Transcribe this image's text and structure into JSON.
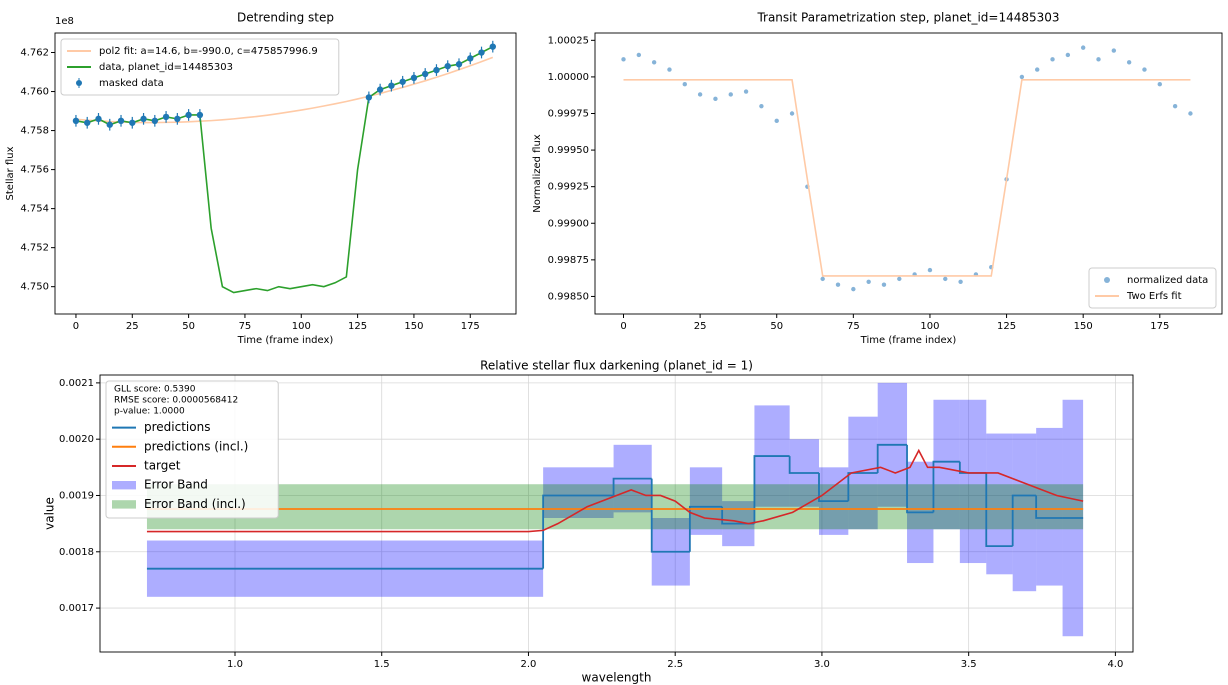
{
  "chart_data": [
    {
      "type": "line",
      "title": "Detrending step",
      "x_label": "Time (frame index)",
      "y_label": "Stellar flux",
      "offset_label": "1e8",
      "x": [
        0,
        5,
        10,
        15,
        20,
        25,
        30,
        35,
        40,
        45,
        50,
        55,
        60,
        65,
        70,
        75,
        80,
        85,
        90,
        95,
        100,
        105,
        110,
        115,
        120,
        125,
        130,
        135,
        140,
        145,
        150,
        155,
        160,
        165,
        170,
        175,
        180,
        185
      ],
      "xlim": [
        -9.3,
        195.3
      ],
      "xticks": [
        0,
        25,
        50,
        75,
        100,
        125,
        150,
        175
      ],
      "ylim": [
        4.7486,
        4.763
      ],
      "yticks": [
        {
          "value": 4.75,
          "label": "4.750"
        },
        4.752,
        4.754,
        4.756,
        4.758,
        {
          "value": 4.76,
          "label": "4.760"
        },
        4.762
      ],
      "grid": false,
      "legend": "upper left",
      "series": [
        {
          "name": "pol2 fit: a=14.6, b=-990.0, c=475857996.9",
          "color": "#ffcaa6",
          "kind": "line",
          "values": [
            4.75858,
            4.75853,
            4.7585,
            4.75846,
            4.75844,
            4.75842,
            4.75841,
            4.75841,
            4.75842,
            4.75843,
            4.75845,
            4.75848,
            4.75851,
            4.75855,
            4.7586,
            4.75866,
            4.75872,
            4.75879,
            4.75887,
            4.75896,
            4.75905,
            4.75915,
            4.75926,
            4.75937,
            4.75949,
            4.75962,
            4.75976,
            4.7599,
            4.76006,
            4.76021,
            4.76038,
            4.76055,
            4.76073,
            4.76092,
            4.76112,
            4.76132,
            4.76153,
            4.76175
          ]
        },
        {
          "name": "data, planet_id=14485303",
          "color": "#2ca02c",
          "kind": "line",
          "values": [
            4.7585,
            4.7584,
            4.7586,
            4.7583,
            4.7585,
            4.7584,
            4.7586,
            4.7585,
            4.7587,
            4.7586,
            4.7588,
            4.7588,
            4.753,
            4.75,
            4.7497,
            4.7498,
            4.7499,
            4.7498,
            4.75,
            4.7499,
            4.75,
            4.7501,
            4.75,
            4.7502,
            4.7505,
            4.756,
            4.7597,
            4.7601,
            4.7603,
            4.7605,
            4.7607,
            4.7609,
            4.7611,
            4.7613,
            4.7614,
            4.7617,
            4.762,
            4.7623
          ]
        },
        {
          "name": "masked data",
          "color": "#1f77b4",
          "kind": "errorbar",
          "error": 0.0003,
          "values": [
            4.7585,
            4.7584,
            4.7586,
            4.7583,
            4.7585,
            4.7584,
            4.7586,
            4.7585,
            4.7587,
            4.7586,
            4.7588,
            4.7588,
            null,
            null,
            null,
            null,
            null,
            null,
            null,
            null,
            null,
            null,
            null,
            null,
            null,
            null,
            4.7597,
            4.7601,
            4.7603,
            4.7605,
            4.7607,
            4.7609,
            4.7611,
            4.7613,
            4.7614,
            4.7617,
            4.762,
            4.7623
          ]
        }
      ]
    },
    {
      "type": "scatter",
      "title": "Transit Parametrization step, planet_id=14485303",
      "x_label": "Time (frame index)",
      "y_label": "Normalized flux",
      "x": [
        0,
        5,
        10,
        15,
        20,
        25,
        30,
        35,
        40,
        45,
        50,
        55,
        60,
        65,
        70,
        75,
        80,
        85,
        90,
        95,
        100,
        105,
        110,
        115,
        120,
        125,
        130,
        135,
        140,
        145,
        150,
        155,
        160,
        165,
        170,
        175,
        180,
        185
      ],
      "xlim": [
        -9.3,
        195.3
      ],
      "xticks": [
        0,
        25,
        50,
        75,
        100,
        125,
        150,
        175
      ],
      "ylim": [
        0.99838,
        1.0003
      ],
      "yticks": [
        {
          "value": 0.9985,
          "label": "0.99850"
        },
        0.99875,
        {
          "value": 0.999,
          "label": "0.99900"
        },
        0.99925,
        {
          "value": 0.9995,
          "label": "0.99950"
        },
        0.99975,
        {
          "value": 1,
          "label": "1.00000"
        },
        1.00025
      ],
      "grid": false,
      "legend": "lower right",
      "series": [
        {
          "name": "normalized data",
          "color": "#86b3d8",
          "kind": "points",
          "values": [
            1.00012,
            1.00015,
            1.0001,
            1.00005,
            0.99995,
            0.99988,
            0.99985,
            0.99988,
            0.9999,
            0.9998,
            0.9997,
            0.99975,
            0.99925,
            0.99862,
            0.99858,
            0.99855,
            0.9986,
            0.99858,
            0.99862,
            0.99865,
            0.99868,
            0.99862,
            0.9986,
            0.99865,
            0.9987,
            0.9993,
            1.0,
            1.00005,
            1.00012,
            1.00015,
            1.0002,
            1.00012,
            1.00018,
            1.0001,
            1.00005,
            0.99995,
            0.9998,
            0.99975
          ]
        },
        {
          "name": "Two Erfs fit",
          "color": "#ffcaa6",
          "kind": "line",
          "values": [
            0.99998,
            0.99998,
            0.99998,
            0.99998,
            0.99998,
            0.99998,
            0.99998,
            0.99998,
            0.99998,
            0.99998,
            0.99998,
            0.99998,
            0.9993,
            0.99864,
            0.99864,
            0.99864,
            0.99864,
            0.99864,
            0.99864,
            0.99864,
            0.99864,
            0.99864,
            0.99864,
            0.99864,
            0.99864,
            0.9993,
            0.99998,
            0.99998,
            0.99998,
            0.99998,
            0.99998,
            0.99998,
            0.99998,
            0.99998,
            0.99998,
            0.99998,
            0.99998,
            0.99998
          ]
        }
      ]
    },
    {
      "type": "line",
      "title": "Relative stellar flux darkening (planet_id = 1)",
      "x_label": "wavelength",
      "y_label": "value",
      "annotation": [
        "GLL score: 0.5390",
        "RMSE score: 0.0000568412",
        "p-value: 1.0000"
      ],
      "xlim": [
        0.54,
        4.06
      ],
      "xticks": [
        {
          "value": 1,
          "label": "1.0"
        },
        1.5,
        {
          "value": 2,
          "label": "2.0"
        },
        2.5,
        {
          "value": 3,
          "label": "3.0"
        },
        3.5,
        {
          "value": 4,
          "label": "4.0"
        }
      ],
      "ylim": [
        0.001622,
        0.002114
      ],
      "yticks": [
        0.0017,
        0.0018,
        0.0019,
        {
          "value": 0.002,
          "label": "0.0020"
        },
        0.0021
      ],
      "grid": true,
      "legend": "upper left",
      "series": [
        {
          "name": "predictions",
          "color": "#1f77b4",
          "kind": "step",
          "bins": [
            0.7,
            2.05,
            2.29,
            2.42,
            2.55,
            2.66,
            2.77,
            2.89,
            2.99,
            3.09,
            3.19,
            3.29,
            3.38,
            3.47,
            3.56,
            3.65,
            3.73,
            3.82,
            3.89
          ],
          "values": [
            0.00177,
            0.0019,
            0.00193,
            0.0018,
            0.00188,
            0.00185,
            0.00197,
            0.00194,
            0.00189,
            0.00194,
            0.00199,
            0.00187,
            0.00196,
            0.00194,
            0.00181,
            0.0019,
            0.00186,
            0.00186
          ]
        },
        {
          "name": "predictions (incl.)",
          "color": "#ff7f0e",
          "kind": "step",
          "bins": [
            0.7,
            3.89
          ],
          "values": [
            0.001876
          ]
        },
        {
          "name": "target",
          "color": "#d62728",
          "kind": "line",
          "x": [
            0.7,
            1.0,
            1.5,
            2.0,
            2.05,
            2.1,
            2.2,
            2.3,
            2.35,
            2.4,
            2.45,
            2.5,
            2.55,
            2.6,
            2.7,
            2.75,
            2.8,
            2.9,
            3.0,
            3.1,
            3.2,
            3.25,
            3.3,
            3.33,
            3.36,
            3.4,
            3.5,
            3.6,
            3.7,
            3.8,
            3.89
          ],
          "values": [
            0.001836,
            0.001836,
            0.001836,
            0.001836,
            0.001838,
            0.00185,
            0.00188,
            0.0019,
            0.00191,
            0.0019,
            0.0019,
            0.00189,
            0.00187,
            0.00186,
            0.001855,
            0.00185,
            0.001855,
            0.00187,
            0.0019,
            0.00194,
            0.00195,
            0.00194,
            0.00195,
            0.00198,
            0.00195,
            0.00195,
            0.00194,
            0.00194,
            0.00192,
            0.0019,
            0.00189
          ]
        },
        {
          "name": "Error Band",
          "color": "#0000ff",
          "kind": "band",
          "bins": [
            0.7,
            2.05,
            2.29,
            2.42,
            2.55,
            2.66,
            2.77,
            2.89,
            2.99,
            3.09,
            3.19,
            3.29,
            3.38,
            3.47,
            3.56,
            3.65,
            3.73,
            3.82,
            3.89
          ],
          "lower": [
            0.00172,
            0.00186,
            0.00187,
            0.00174,
            0.00183,
            0.00181,
            0.00188,
            0.00188,
            0.00183,
            0.00184,
            0.00188,
            0.00178,
            0.00184,
            0.00178,
            0.00176,
            0.00173,
            0.00174,
            0.00165
          ],
          "upper": [
            0.00182,
            0.00195,
            0.00199,
            0.00186,
            0.00195,
            0.00189,
            0.00206,
            0.002,
            0.00195,
            0.00204,
            0.0021,
            0.00196,
            0.00207,
            0.00207,
            0.00201,
            0.00201,
            0.00202,
            0.00207
          ]
        },
        {
          "name": "Error Band (incl.)",
          "color": "#008000",
          "kind": "band",
          "bins": [
            0.7,
            3.89
          ],
          "lower": [
            0.00184
          ],
          "upper": [
            0.00192
          ]
        }
      ]
    }
  ]
}
